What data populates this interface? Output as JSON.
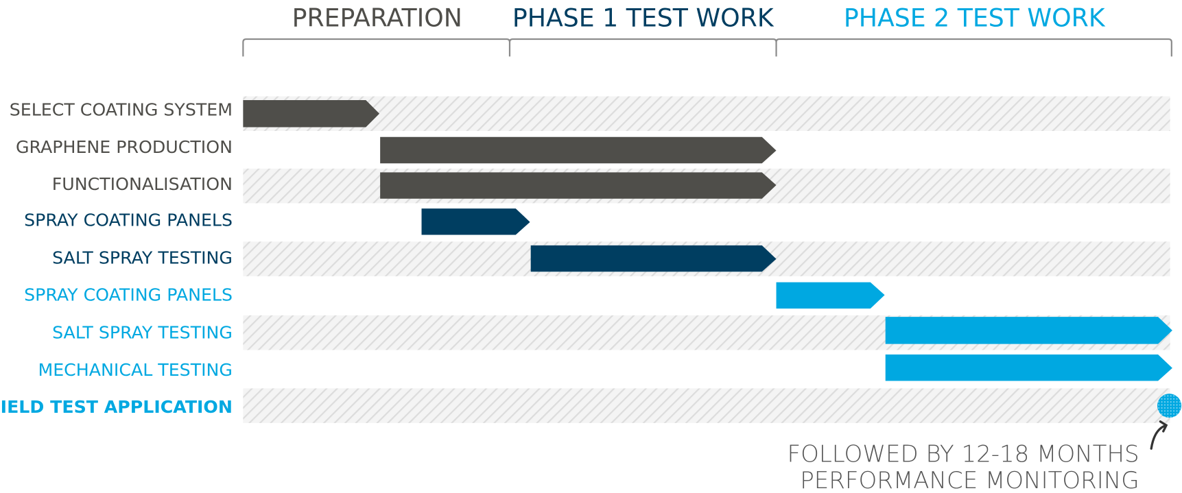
{
  "phases": [
    "PREPARATION",
    "PHASE 1 TEST WORK",
    "PHASE 2 TEST WORK"
  ],
  "tasks": [
    "SELECT COATING SYSTEM",
    "GRAPHENE PRODUCTION",
    "FUNCTIONALISATION",
    "SPRAY COATING PANELS",
    "SALT SPRAY TESTING",
    "SPRAY COATING PANELS",
    "SALT SPRAY TESTING",
    "MECHANICAL TESTING",
    "FIELD TEST APPLICATION"
  ],
  "note": [
    "FOLLOWED BY 12-18 MONTHS",
    "PERFORMANCE MONITORING"
  ]
}
